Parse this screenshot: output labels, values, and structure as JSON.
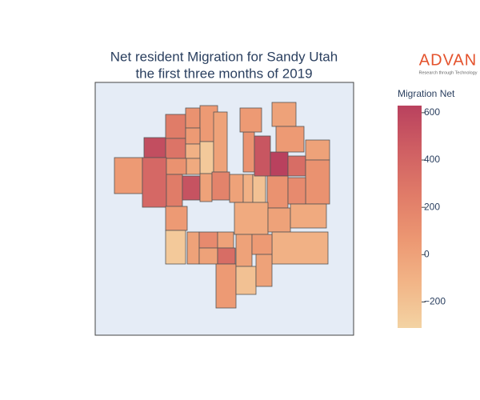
{
  "chart_data": {
    "type": "choropleth",
    "title": "Net resident Migration for Sandy Utah",
    "subtitle": "the first three months of 2019",
    "values": [
      250,
      100,
      50,
      300,
      50,
      550,
      -100,
      -250,
      0,
      50,
      380,
      100,
      -50,
      250,
      520,
      0,
      200,
      0,
      -100,
      -200,
      100,
      500,
      630,
      350,
      50,
      0,
      50,
      0,
      100,
      100,
      150,
      -50,
      0,
      -50,
      -100,
      50,
      -250,
      0,
      150,
      0,
      0,
      350,
      50,
      0,
      50,
      -200,
      0
    ],
    "colorscale": [
      "#f3d3a3",
      "#f2b587",
      "#ec9772",
      "#e07b68",
      "#cf5f63",
      "#b9415e"
    ],
    "colorbar": {
      "title": "Migration Net",
      "clim": [
        -310,
        630
      ],
      "ticks": [
        {
          "value": -200,
          "label": "−200"
        },
        0,
        200,
        400,
        600
      ]
    }
  },
  "logo": {
    "name": "ADVAN",
    "tagline": "Research through Technology"
  }
}
